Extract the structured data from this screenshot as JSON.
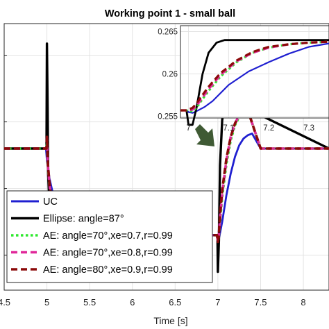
{
  "chart_data": [
    {
      "type": "line",
      "title": "Working point 1  - small ball",
      "xlabel": "Time [s]",
      "ylabel": "",
      "xlim": [
        4.5,
        8.3
      ],
      "ylim": [
        0.253,
        0.269
      ],
      "x_ticks": [
        "4.5",
        "5",
        "5.5",
        "6",
        "6.5",
        "7",
        "7.5",
        "8"
      ],
      "grid": true,
      "legend_position": "bottom-left",
      "series": [
        {
          "name": "UC",
          "color": "#1f1fd0",
          "style": "solid",
          "x": [
            4.5,
            4.99,
            5.0,
            5.03,
            5.07,
            5.12,
            5.18,
            5.25,
            5.32,
            5.4,
            5.5,
            5.6,
            6.0,
            6.5,
            6.98,
            6.99,
            7.0,
            7.02,
            7.05,
            7.1,
            7.15,
            7.2,
            7.25,
            7.3,
            7.35,
            7.4,
            7.5,
            8.3
          ],
          "y": [
            0.2615,
            0.2615,
            0.2608,
            0.2597,
            0.2588,
            0.258,
            0.2574,
            0.2569,
            0.2566,
            0.2564,
            0.2563,
            0.2563,
            0.2563,
            0.2563,
            0.2563,
            0.2563,
            0.2558,
            0.2563,
            0.2571,
            0.2587,
            0.26,
            0.261,
            0.2617,
            0.2621,
            0.2623,
            0.2624,
            0.2615,
            0.2615
          ]
        },
        {
          "name": "Ellipse: angle=87°",
          "color": "#000000",
          "style": "solid",
          "x": [
            4.5,
            4.995,
            5.0,
            5.008,
            5.015,
            5.03,
            5.05,
            5.08,
            5.11,
            5.15,
            6.0,
            6.5,
            6.99,
            6.995,
            7.0,
            7.012,
            7.025,
            7.05,
            7.07,
            7.1,
            7.15,
            7.2,
            7.3,
            8.3
          ],
          "y": [
            0.2615,
            0.2615,
            0.2678,
            0.264,
            0.26,
            0.258,
            0.2568,
            0.2564,
            0.2563,
            0.2563,
            0.2563,
            0.2563,
            0.2563,
            0.2563,
            0.2541,
            0.256,
            0.2605,
            0.2632,
            0.2639,
            0.264,
            0.264,
            0.264,
            0.264,
            0.2615
          ]
        },
        {
          "name": "AE: angle=70°,xe=0.7,r=0.99",
          "color": "#2ee82e",
          "style": "dotted",
          "x": [
            4.5,
            4.995,
            5.0,
            5.01,
            5.03,
            5.06,
            5.1,
            5.15,
            5.2,
            5.3,
            5.4,
            6.0,
            6.5,
            6.99,
            7.0,
            7.01,
            7.03,
            7.05,
            7.1,
            7.15,
            7.2,
            7.25,
            7.3,
            7.35,
            7.5,
            8.3
          ],
          "y": [
            0.2615,
            0.2615,
            0.262,
            0.2605,
            0.2593,
            0.2582,
            0.2574,
            0.2568,
            0.2566,
            0.2564,
            0.2563,
            0.2563,
            0.2563,
            0.2563,
            0.2559,
            0.2562,
            0.2574,
            0.2586,
            0.2606,
            0.262,
            0.2629,
            0.2634,
            0.2637,
            0.2638,
            0.2615,
            0.2615
          ]
        },
        {
          "name": "AE: angle=70°,xe=0.8,r=0.99",
          "color": "#e0289a",
          "style": "dashed",
          "x": [
            4.5,
            4.995,
            5.0,
            5.01,
            5.03,
            5.06,
            5.1,
            5.15,
            5.2,
            5.3,
            5.4,
            6.0,
            6.5,
            6.99,
            7.0,
            7.01,
            7.03,
            7.05,
            7.1,
            7.15,
            7.2,
            7.25,
            7.3,
            7.35,
            7.5,
            8.3
          ],
          "y": [
            0.2615,
            0.2615,
            0.2621,
            0.2606,
            0.2593,
            0.2582,
            0.2574,
            0.2568,
            0.2566,
            0.2564,
            0.2563,
            0.2563,
            0.2563,
            0.2563,
            0.2559,
            0.2562,
            0.2576,
            0.2588,
            0.2608,
            0.2622,
            0.263,
            0.2635,
            0.2637,
            0.2638,
            0.2615,
            0.2615
          ]
        },
        {
          "name": "AE: angle=80°,xe=0.9,r=0.99",
          "color": "#8b0a0a",
          "style": "dashed",
          "x": [
            4.5,
            4.995,
            5.0,
            5.01,
            5.03,
            5.06,
            5.1,
            5.15,
            5.2,
            5.3,
            5.4,
            6.0,
            6.5,
            6.99,
            7.0,
            7.01,
            7.03,
            7.05,
            7.1,
            7.15,
            7.2,
            7.25,
            7.3,
            7.35,
            7.5,
            8.3
          ],
          "y": [
            0.2615,
            0.2615,
            0.2622,
            0.2607,
            0.2594,
            0.2583,
            0.2575,
            0.2569,
            0.2566,
            0.2564,
            0.2563,
            0.2563,
            0.2563,
            0.2563,
            0.2559,
            0.2562,
            0.2578,
            0.259,
            0.2609,
            0.2622,
            0.263,
            0.2635,
            0.2637,
            0.2638,
            0.2615,
            0.2615
          ]
        }
      ]
    },
    {
      "type": "line",
      "title": "",
      "xlabel": "",
      "ylabel": "",
      "xlim": [
        6.98,
        7.35
      ],
      "ylim": [
        0.2548,
        0.2657
      ],
      "x_ticks": [
        "7",
        "7.1",
        "7.2",
        "7.3"
      ],
      "y_ticks": [
        "0.255",
        "0.26",
        "0.265"
      ],
      "grid": true,
      "legend_position": "none",
      "series": [
        {
          "name": "UC",
          "color": "#1f1fd0",
          "style": "solid",
          "x": [
            6.98,
            6.995,
            7.0,
            7.01,
            7.02,
            7.04,
            7.06,
            7.1,
            7.15,
            7.2,
            7.25,
            7.3,
            7.35
          ],
          "y": [
            0.2557,
            0.2557,
            0.2555,
            0.2554,
            0.2556,
            0.2561,
            0.2568,
            0.2587,
            0.2603,
            0.2614,
            0.2624,
            0.2632,
            0.2636
          ]
        },
        {
          "name": "Ellipse: angle=87°",
          "color": "#000000",
          "style": "solid",
          "x": [
            6.98,
            6.995,
            7.0,
            7.01,
            7.02,
            7.035,
            7.05,
            7.07,
            7.09,
            7.11,
            7.15,
            7.35
          ],
          "y": [
            0.2557,
            0.2557,
            0.254,
            0.254,
            0.256,
            0.26,
            0.2625,
            0.2637,
            0.264,
            0.264,
            0.264,
            0.264
          ]
        },
        {
          "name": "AE: angle=70°,xe=0.7,r=0.99",
          "color": "#2ee82e",
          "style": "dotted",
          "x": [
            6.98,
            6.995,
            7.0,
            7.01,
            7.02,
            7.03,
            7.05,
            7.08,
            7.12,
            7.16,
            7.2,
            7.25,
            7.3,
            7.35
          ],
          "y": [
            0.2557,
            0.2557,
            0.2556,
            0.2556,
            0.256,
            0.2567,
            0.258,
            0.2597,
            0.2614,
            0.2625,
            0.2631,
            0.2635,
            0.2637,
            0.2638
          ]
        },
        {
          "name": "AE: angle=70°,xe=0.8,r=0.99",
          "color": "#e0289a",
          "style": "dashed",
          "x": [
            6.98,
            6.995,
            7.0,
            7.01,
            7.02,
            7.03,
            7.05,
            7.08,
            7.12,
            7.16,
            7.2,
            7.25,
            7.3,
            7.35
          ],
          "y": [
            0.2557,
            0.2557,
            0.2557,
            0.2558,
            0.2562,
            0.2569,
            0.2582,
            0.2599,
            0.2615,
            0.2625,
            0.2631,
            0.2635,
            0.2637,
            0.2638
          ]
        },
        {
          "name": "AE: angle=80°,xe=0.9,r=0.99",
          "color": "#8b0a0a",
          "style": "dashed",
          "x": [
            6.98,
            6.995,
            7.0,
            7.01,
            7.02,
            7.03,
            7.05,
            7.08,
            7.12,
            7.16,
            7.2,
            7.25,
            7.3,
            7.35
          ],
          "y": [
            0.2557,
            0.2557,
            0.2558,
            0.256,
            0.2565,
            0.2572,
            0.2585,
            0.2601,
            0.2616,
            0.2626,
            0.2632,
            0.2635,
            0.2637,
            0.2638
          ]
        }
      ]
    }
  ],
  "annotation": {
    "arrow_color": "#3f5a34"
  }
}
